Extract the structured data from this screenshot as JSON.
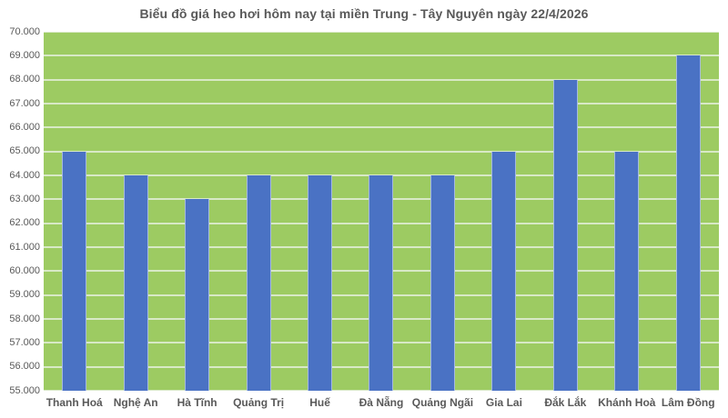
{
  "page": {
    "title": "Biểu đồ giá heo hơi hôm nay tại miền Trung - Tây Nguyên ngày 22/4/2026"
  },
  "chart_data": {
    "type": "bar",
    "title": "Biểu đồ giá heo hơi hôm nay tại miền Trung - Tây Nguyên ngày 22/4/2026",
    "categories": [
      "Thanh Hoá",
      "Nghệ An",
      "Hà Tĩnh",
      "Quảng Trị",
      "Huế",
      "Đà Nẵng",
      "Quảng Ngãi",
      "Gia Lai",
      "Đắk Lắk",
      "Khánh Hoà",
      "Lâm Đồng"
    ],
    "values": [
      65000,
      64000,
      63000,
      64000,
      64000,
      64000,
      64000,
      65000,
      68000,
      65000,
      69000
    ],
    "xlabel": "",
    "ylabel": "",
    "ylim": [
      55000,
      70000
    ],
    "ytick_step": 1000,
    "ytick_labels": [
      "70.000",
      "69.000",
      "68.000",
      "67.000",
      "66.000",
      "65.000",
      "64.000",
      "63.000",
      "62.000",
      "61.000",
      "60.000",
      "59.000",
      "58.000",
      "57.000",
      "56.000",
      "55.000"
    ],
    "grid": "horizontal",
    "legend_position": "none",
    "colors": {
      "bar": "#4A72C4",
      "plot_background": "#9DCB62",
      "gridline": "#D8E9C6",
      "text": "#595959"
    }
  }
}
